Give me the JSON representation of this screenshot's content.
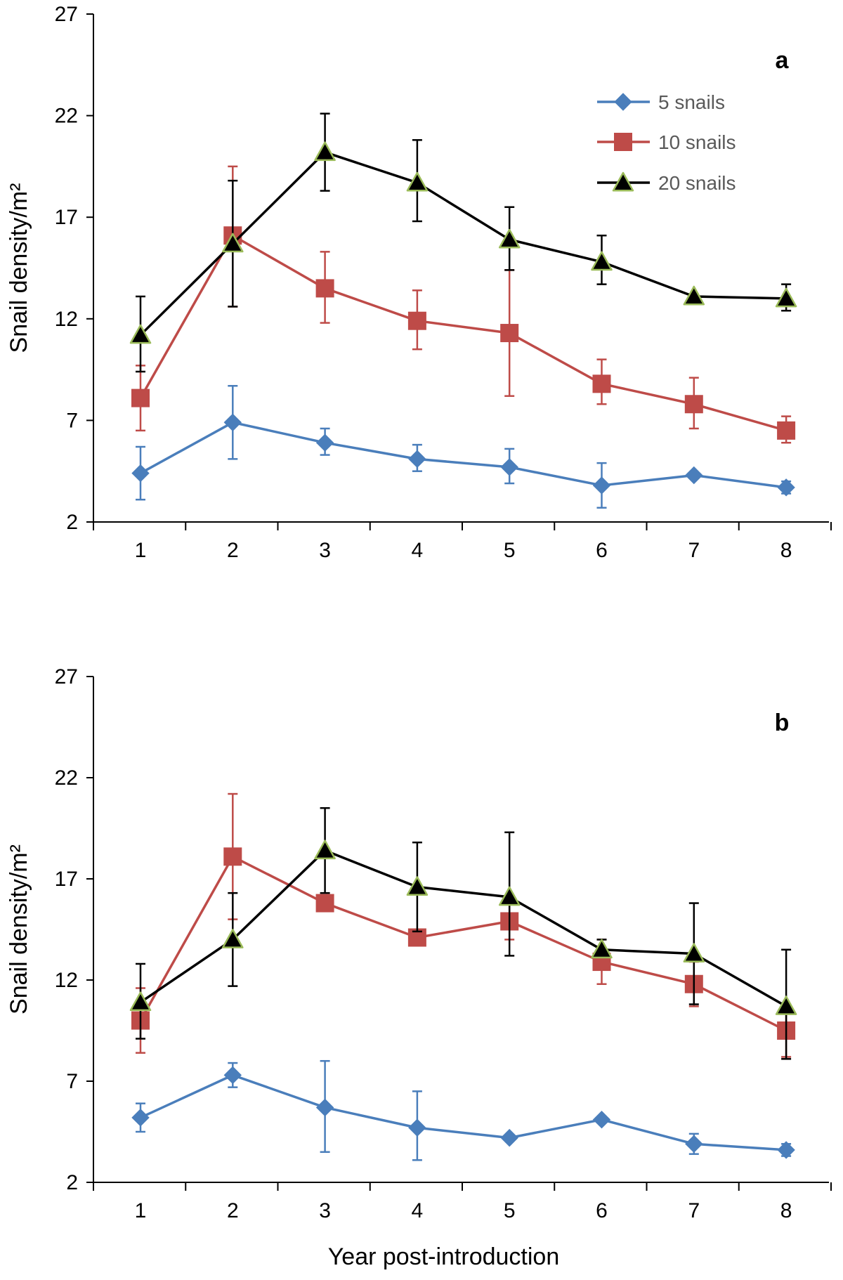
{
  "colors": {
    "s5": "#4a7ebb",
    "s10": "#be4b48",
    "s20": "#000000",
    "triangle_edge": "#9bbb59",
    "axis": "#000000",
    "legend_text": "#595959"
  },
  "chart_data": [
    {
      "type": "line",
      "panel": "a",
      "title": "",
      "xlabel": "",
      "ylabel": "Snail density/m²",
      "x": [
        1,
        2,
        3,
        4,
        5,
        6,
        7,
        8
      ],
      "xticks": [
        "1",
        "2",
        "3",
        "4",
        "5",
        "6",
        "7",
        "8"
      ],
      "yticks": [
        "2",
        "7",
        "12",
        "17",
        "22",
        "27"
      ],
      "ylim": [
        2,
        27
      ],
      "legend": {
        "position": "top-right",
        "entries": [
          "5 snails",
          "10 snails",
          "20 snails"
        ]
      },
      "series": [
        {
          "name": "5 snails",
          "color_key": "s5",
          "marker": "diamond",
          "values": [
            4.4,
            6.9,
            5.9,
            5.1,
            4.7,
            3.8,
            4.3,
            3.7
          ],
          "err_low": [
            1.3,
            1.8,
            0.6,
            0.6,
            0.8,
            1.1,
            0.0,
            0.3
          ],
          "err_high": [
            1.3,
            1.8,
            0.7,
            0.7,
            0.9,
            1.1,
            0.0,
            0.3
          ]
        },
        {
          "name": "10 snails",
          "color_key": "s10",
          "marker": "square",
          "values": [
            8.1,
            16.1,
            13.5,
            11.9,
            11.3,
            8.8,
            7.8,
            6.5
          ],
          "err_low": [
            1.6,
            3.5,
            1.7,
            1.4,
            3.1,
            1.0,
            1.2,
            0.6
          ],
          "err_high": [
            1.6,
            3.4,
            1.8,
            1.5,
            3.1,
            1.2,
            1.3,
            0.7
          ]
        },
        {
          "name": "20 snails",
          "color_key": "s20",
          "marker": "triangle",
          "values": [
            11.2,
            15.7,
            20.2,
            18.7,
            15.9,
            14.8,
            13.1,
            13.0
          ],
          "err_low": [
            1.8,
            3.1,
            1.9,
            1.9,
            1.5,
            1.1,
            0.0,
            0.6
          ],
          "err_high": [
            1.9,
            3.1,
            1.9,
            2.1,
            1.6,
            1.3,
            0.0,
            0.7
          ]
        }
      ]
    },
    {
      "type": "line",
      "panel": "b",
      "title": "",
      "xlabel": "Year post-introduction",
      "ylabel": "Snail density/m²",
      "x": [
        1,
        2,
        3,
        4,
        5,
        6,
        7,
        8
      ],
      "xticks": [
        "1",
        "2",
        "3",
        "4",
        "5",
        "6",
        "7",
        "8"
      ],
      "yticks": [
        "2",
        "7",
        "12",
        "17",
        "22",
        "27"
      ],
      "ylim": [
        2,
        27
      ],
      "legend": null,
      "series": [
        {
          "name": "5 snails",
          "color_key": "s5",
          "marker": "diamond",
          "values": [
            5.2,
            7.3,
            5.7,
            4.7,
            4.2,
            5.1,
            3.9,
            3.6
          ],
          "err_low": [
            0.7,
            0.6,
            2.2,
            1.6,
            0.0,
            0.0,
            0.5,
            0.3
          ],
          "err_high": [
            0.7,
            0.6,
            2.3,
            1.8,
            0.0,
            0.0,
            0.5,
            0.3
          ]
        },
        {
          "name": "10 snails",
          "color_key": "s10",
          "marker": "square",
          "values": [
            10.0,
            18.1,
            15.8,
            14.1,
            14.9,
            12.9,
            11.8,
            9.5
          ],
          "err_low": [
            1.6,
            3.1,
            0.3,
            0.0,
            0.9,
            1.1,
            1.1,
            1.3
          ],
          "err_high": [
            1.6,
            3.1,
            0.3,
            0.0,
            0.9,
            1.1,
            1.1,
            1.3
          ]
        },
        {
          "name": "20 snails",
          "color_key": "s20",
          "marker": "triangle",
          "values": [
            10.9,
            14.0,
            18.4,
            16.6,
            16.1,
            13.5,
            13.3,
            10.7
          ],
          "err_low": [
            1.8,
            2.3,
            2.1,
            2.2,
            2.9,
            0.0,
            2.5,
            2.6
          ],
          "err_high": [
            1.9,
            2.3,
            2.1,
            2.2,
            3.2,
            0.5,
            2.5,
            2.8
          ]
        }
      ]
    }
  ]
}
